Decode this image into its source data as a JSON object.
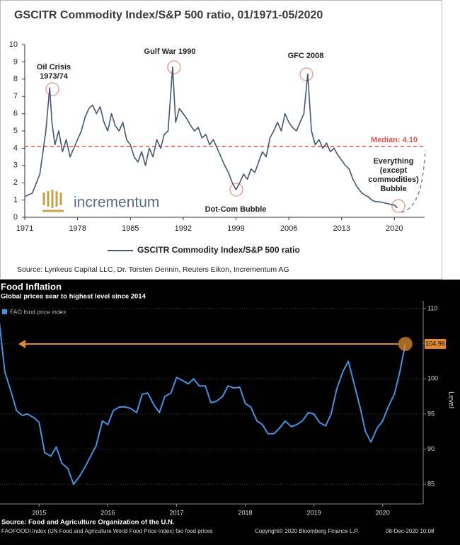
{
  "chart_data": [
    {
      "type": "line",
      "title": "GSCITR Commodity Index/S&P 500 ratio, 01/1971-05/2020",
      "x": [
        1971,
        1972,
        1973,
        1973.8,
        1974.3,
        1974.6,
        1975,
        1975.5,
        1976,
        1976.5,
        1977,
        1977.5,
        1978,
        1978.5,
        1979,
        1979.5,
        1980,
        1980.5,
        1981,
        1981.5,
        1982,
        1982.5,
        1983,
        1983.5,
        1984,
        1984.5,
        1985,
        1985.5,
        1986,
        1986.5,
        1987,
        1987.5,
        1988,
        1988.5,
        1989,
        1989.5,
        1990,
        1990.6,
        1991,
        1991.5,
        1992,
        1992.5,
        1993,
        1993.5,
        1994,
        1994.5,
        1995,
        1995.5,
        1996,
        1996.5,
        1997,
        1997.5,
        1998,
        1998.5,
        1999,
        1999.5,
        2000,
        2000.5,
        2001,
        2001.5,
        2002,
        2002.5,
        2003,
        2003.5,
        2004,
        2004.5,
        2005,
        2005.5,
        2006,
        2006.5,
        2007,
        2007.5,
        2008,
        2008.5,
        2009,
        2009.5,
        2010,
        2010.5,
        2011,
        2011.5,
        2012,
        2012.5,
        2013,
        2013.5,
        2014,
        2014.5,
        2015,
        2015.5,
        2016,
        2016.5,
        2017,
        2017.5,
        2018,
        2018.5,
        2019,
        2019.5,
        2020,
        2020.4
      ],
      "series": [
        {
          "name": "GSCITR Commodity Index/S&P 500 ratio",
          "color": "#46566b",
          "values": [
            1.2,
            1.4,
            2.5,
            5.0,
            7.5,
            5.5,
            4.2,
            5.0,
            3.8,
            4.5,
            3.5,
            4.0,
            4.5,
            5.0,
            5.8,
            6.3,
            6.5,
            6.0,
            6.4,
            5.5,
            5.0,
            6.0,
            5.3,
            5.0,
            5.5,
            4.5,
            4.2,
            3.5,
            3.2,
            3.8,
            3.0,
            4.0,
            3.5,
            4.5,
            4.0,
            4.8,
            5.0,
            8.7,
            5.5,
            6.3,
            6.0,
            5.7,
            5.3,
            5.0,
            5.2,
            4.6,
            4.8,
            4.2,
            4.5,
            4.0,
            3.5,
            3.0,
            2.6,
            2.0,
            1.6,
            2.0,
            2.5,
            2.2,
            2.8,
            2.6,
            3.2,
            3.8,
            3.5,
            4.6,
            5.0,
            5.5,
            5.0,
            6.0,
            5.5,
            5.2,
            5.0,
            5.5,
            6.0,
            8.3,
            5.0,
            4.2,
            4.5,
            4.0,
            4.3,
            3.8,
            4.0,
            3.6,
            3.3,
            3.0,
            2.8,
            2.2,
            1.8,
            1.5,
            1.3,
            1.2,
            1.0,
            0.9,
            0.9,
            0.85,
            0.8,
            0.75,
            0.7,
            0.55
          ]
        }
      ],
      "xlim": [
        1971,
        2024
      ],
      "xticks": [
        1971,
        1978,
        1985,
        1992,
        1999,
        2006,
        2013,
        2020
      ],
      "ylim": [
        0,
        10
      ],
      "yticks": [
        0,
        1,
        2,
        3,
        4,
        5,
        6,
        7,
        8,
        9,
        10
      ],
      "median": {
        "value": 4.1,
        "label": "Median: 4.10"
      },
      "median_color": "#d9534f",
      "annotations": [
        "Oil Crisis",
        "1973/74",
        "Gulf War 1990",
        "GFC 2008",
        "Dot-Com Bubble",
        "Everything",
        "(except",
        "commodities)",
        "Bubble"
      ],
      "logo": "incrementum",
      "source": "Source: Lynkeus Capital LLC, Dr. Torsten Dennin, Reuters Eikon, Incrementum AG"
    },
    {
      "type": "line",
      "title": "Food Inflation",
      "subtitle": "Global prices sear to highest level since 2014",
      "x": [
        2014.92,
        2015.0,
        2015.08,
        2015.17,
        2015.25,
        2015.33,
        2015.42,
        2015.5,
        2015.58,
        2015.67,
        2015.75,
        2015.83,
        2015.92,
        2016.0,
        2016.08,
        2016.17,
        2016.25,
        2016.33,
        2016.42,
        2016.5,
        2016.58,
        2016.67,
        2016.75,
        2016.83,
        2016.92,
        2017.0,
        2017.08,
        2017.17,
        2017.25,
        2017.33,
        2017.42,
        2017.5,
        2017.58,
        2017.67,
        2017.75,
        2017.83,
        2017.92,
        2018.0,
        2018.08,
        2018.17,
        2018.25,
        2018.33,
        2018.42,
        2018.5,
        2018.58,
        2018.67,
        2018.75,
        2018.83,
        2018.92,
        2019.0,
        2019.08,
        2019.17,
        2019.25,
        2019.33,
        2019.42,
        2019.5,
        2019.58,
        2019.67,
        2019.75,
        2019.83,
        2019.92,
        2020.0,
        2020.08,
        2020.17,
        2020.25,
        2020.33,
        2020.42,
        2020.5,
        2020.58,
        2020.67,
        2020.75,
        2020.83
      ],
      "series": [
        {
          "name": "FAO food price index",
          "color": "#4a90e2",
          "values": [
            108.1,
            101.0,
            98.5,
            95.5,
            94.8,
            95.0,
            94.5,
            93.8,
            89.5,
            89.0,
            90.3,
            88.0,
            87.2,
            85.0,
            86.0,
            87.5,
            89.0,
            90.5,
            94.0,
            93.5,
            95.5,
            96.0,
            96.0,
            95.8,
            95.2,
            97.8,
            98.0,
            96.3,
            95.2,
            97.5,
            98.0,
            100.2,
            99.8,
            99.3,
            100.0,
            99.0,
            99.0,
            96.6,
            96.8,
            97.5,
            99.0,
            98.7,
            98.8,
            96.5,
            96.0,
            94.0,
            93.5,
            92.2,
            92.2,
            93.0,
            94.0,
            93.2,
            93.5,
            94.0,
            95.2,
            95.0,
            93.8,
            93.3,
            95.0,
            98.5,
            101.0,
            102.5,
            99.5,
            96.0,
            92.5,
            91.0,
            93.0,
            94.0,
            96.0,
            97.8,
            101.0,
            104.96
          ]
        }
      ],
      "xlim": [
        2014.93,
        2021.08
      ],
      "xticks": [
        {
          "value": 2015.5,
          "label": "2015"
        },
        {
          "value": 2016.5,
          "label": "2016"
        },
        {
          "value": 2017.5,
          "label": "2017"
        },
        {
          "value": 2018.5,
          "label": "2018"
        },
        {
          "value": 2019.5,
          "label": "2019"
        },
        {
          "value": 2020.5,
          "label": "2020"
        }
      ],
      "ylim": [
        82.2,
        111.1
      ],
      "yticks": [
        85,
        90,
        95,
        100,
        105,
        110
      ],
      "y_label": "Level",
      "highlight_color": "#e08a2e",
      "source": "Source: Food and Agriculture Organization of the U.N.",
      "notes": [
        "FAOFOODI Index (UN Food and Agriculture World Food Price Index) fao food prices",
        "Copyright© 2020 Bloomberg Finance L.P.",
        "08-Dec-2020 10:08"
      ]
    }
  ]
}
